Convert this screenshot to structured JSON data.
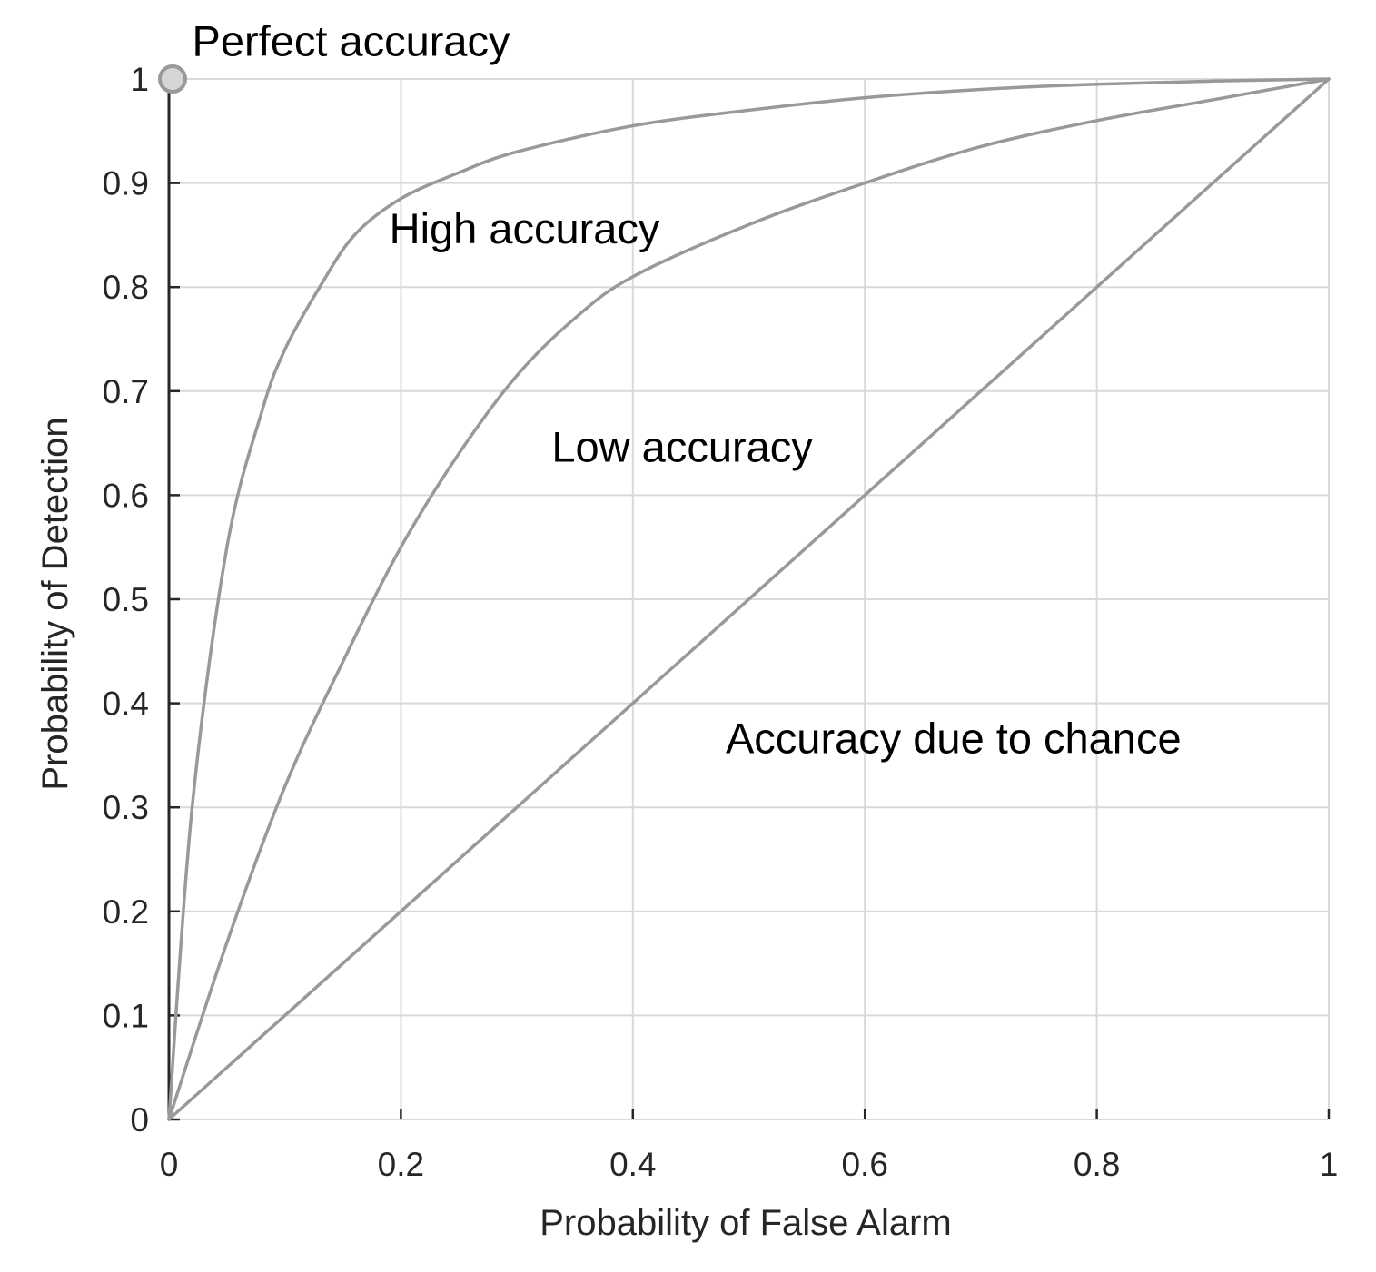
{
  "chart_data": {
    "type": "line",
    "title": "",
    "xlabel": "Probability of False Alarm",
    "ylabel": "Probability of Detection",
    "xlim": [
      0,
      1
    ],
    "ylim": [
      0,
      1
    ],
    "grid": true,
    "xticks": [
      "0",
      "0.2",
      "0.4",
      "0.6",
      "0.8",
      "1"
    ],
    "yticks": [
      "0",
      "0.1",
      "0.2",
      "0.3",
      "0.4",
      "0.5",
      "0.6",
      "0.7",
      "0.8",
      "0.9",
      "1"
    ],
    "series": [
      {
        "color": "#999999",
        "x": [
          0,
          0.02,
          0.05,
          0.08,
          0.1,
          0.13,
          0.16,
          0.2,
          0.25,
          0.3,
          0.4,
          0.5,
          0.6,
          0.7,
          0.8,
          0.9,
          1
        ],
        "y": [
          0,
          0.3,
          0.55,
          0.68,
          0.74,
          0.8,
          0.85,
          0.885,
          0.91,
          0.93,
          0.955,
          0.97,
          0.982,
          0.99,
          0.995,
          0.998,
          1
        ]
      },
      {
        "color": "#999999",
        "x": [
          0,
          0.05,
          0.1,
          0.15,
          0.2,
          0.25,
          0.3,
          0.35,
          0.4,
          0.5,
          0.6,
          0.7,
          0.8,
          0.9,
          1
        ],
        "y": [
          0,
          0.17,
          0.32,
          0.44,
          0.55,
          0.64,
          0.715,
          0.77,
          0.81,
          0.86,
          0.9,
          0.935,
          0.96,
          0.98,
          1
        ]
      },
      {
        "color": "#999999",
        "x": [
          0,
          1
        ],
        "y": [
          0,
          1
        ]
      }
    ],
    "points": [
      {
        "x": 0,
        "y": 1,
        "color": "#d6d6d6",
        "stroke": "#999999"
      }
    ],
    "annotations": [
      {
        "text": "Perfect accuracy",
        "x": 0.02,
        "y": 1.01
      },
      {
        "text": "High accuracy",
        "x": 0.19,
        "y": 0.83
      },
      {
        "text": "Low accuracy",
        "x": 0.33,
        "y": 0.62
      },
      {
        "text": "Accuracy due to chance",
        "x": 0.48,
        "y": 0.34
      }
    ]
  }
}
